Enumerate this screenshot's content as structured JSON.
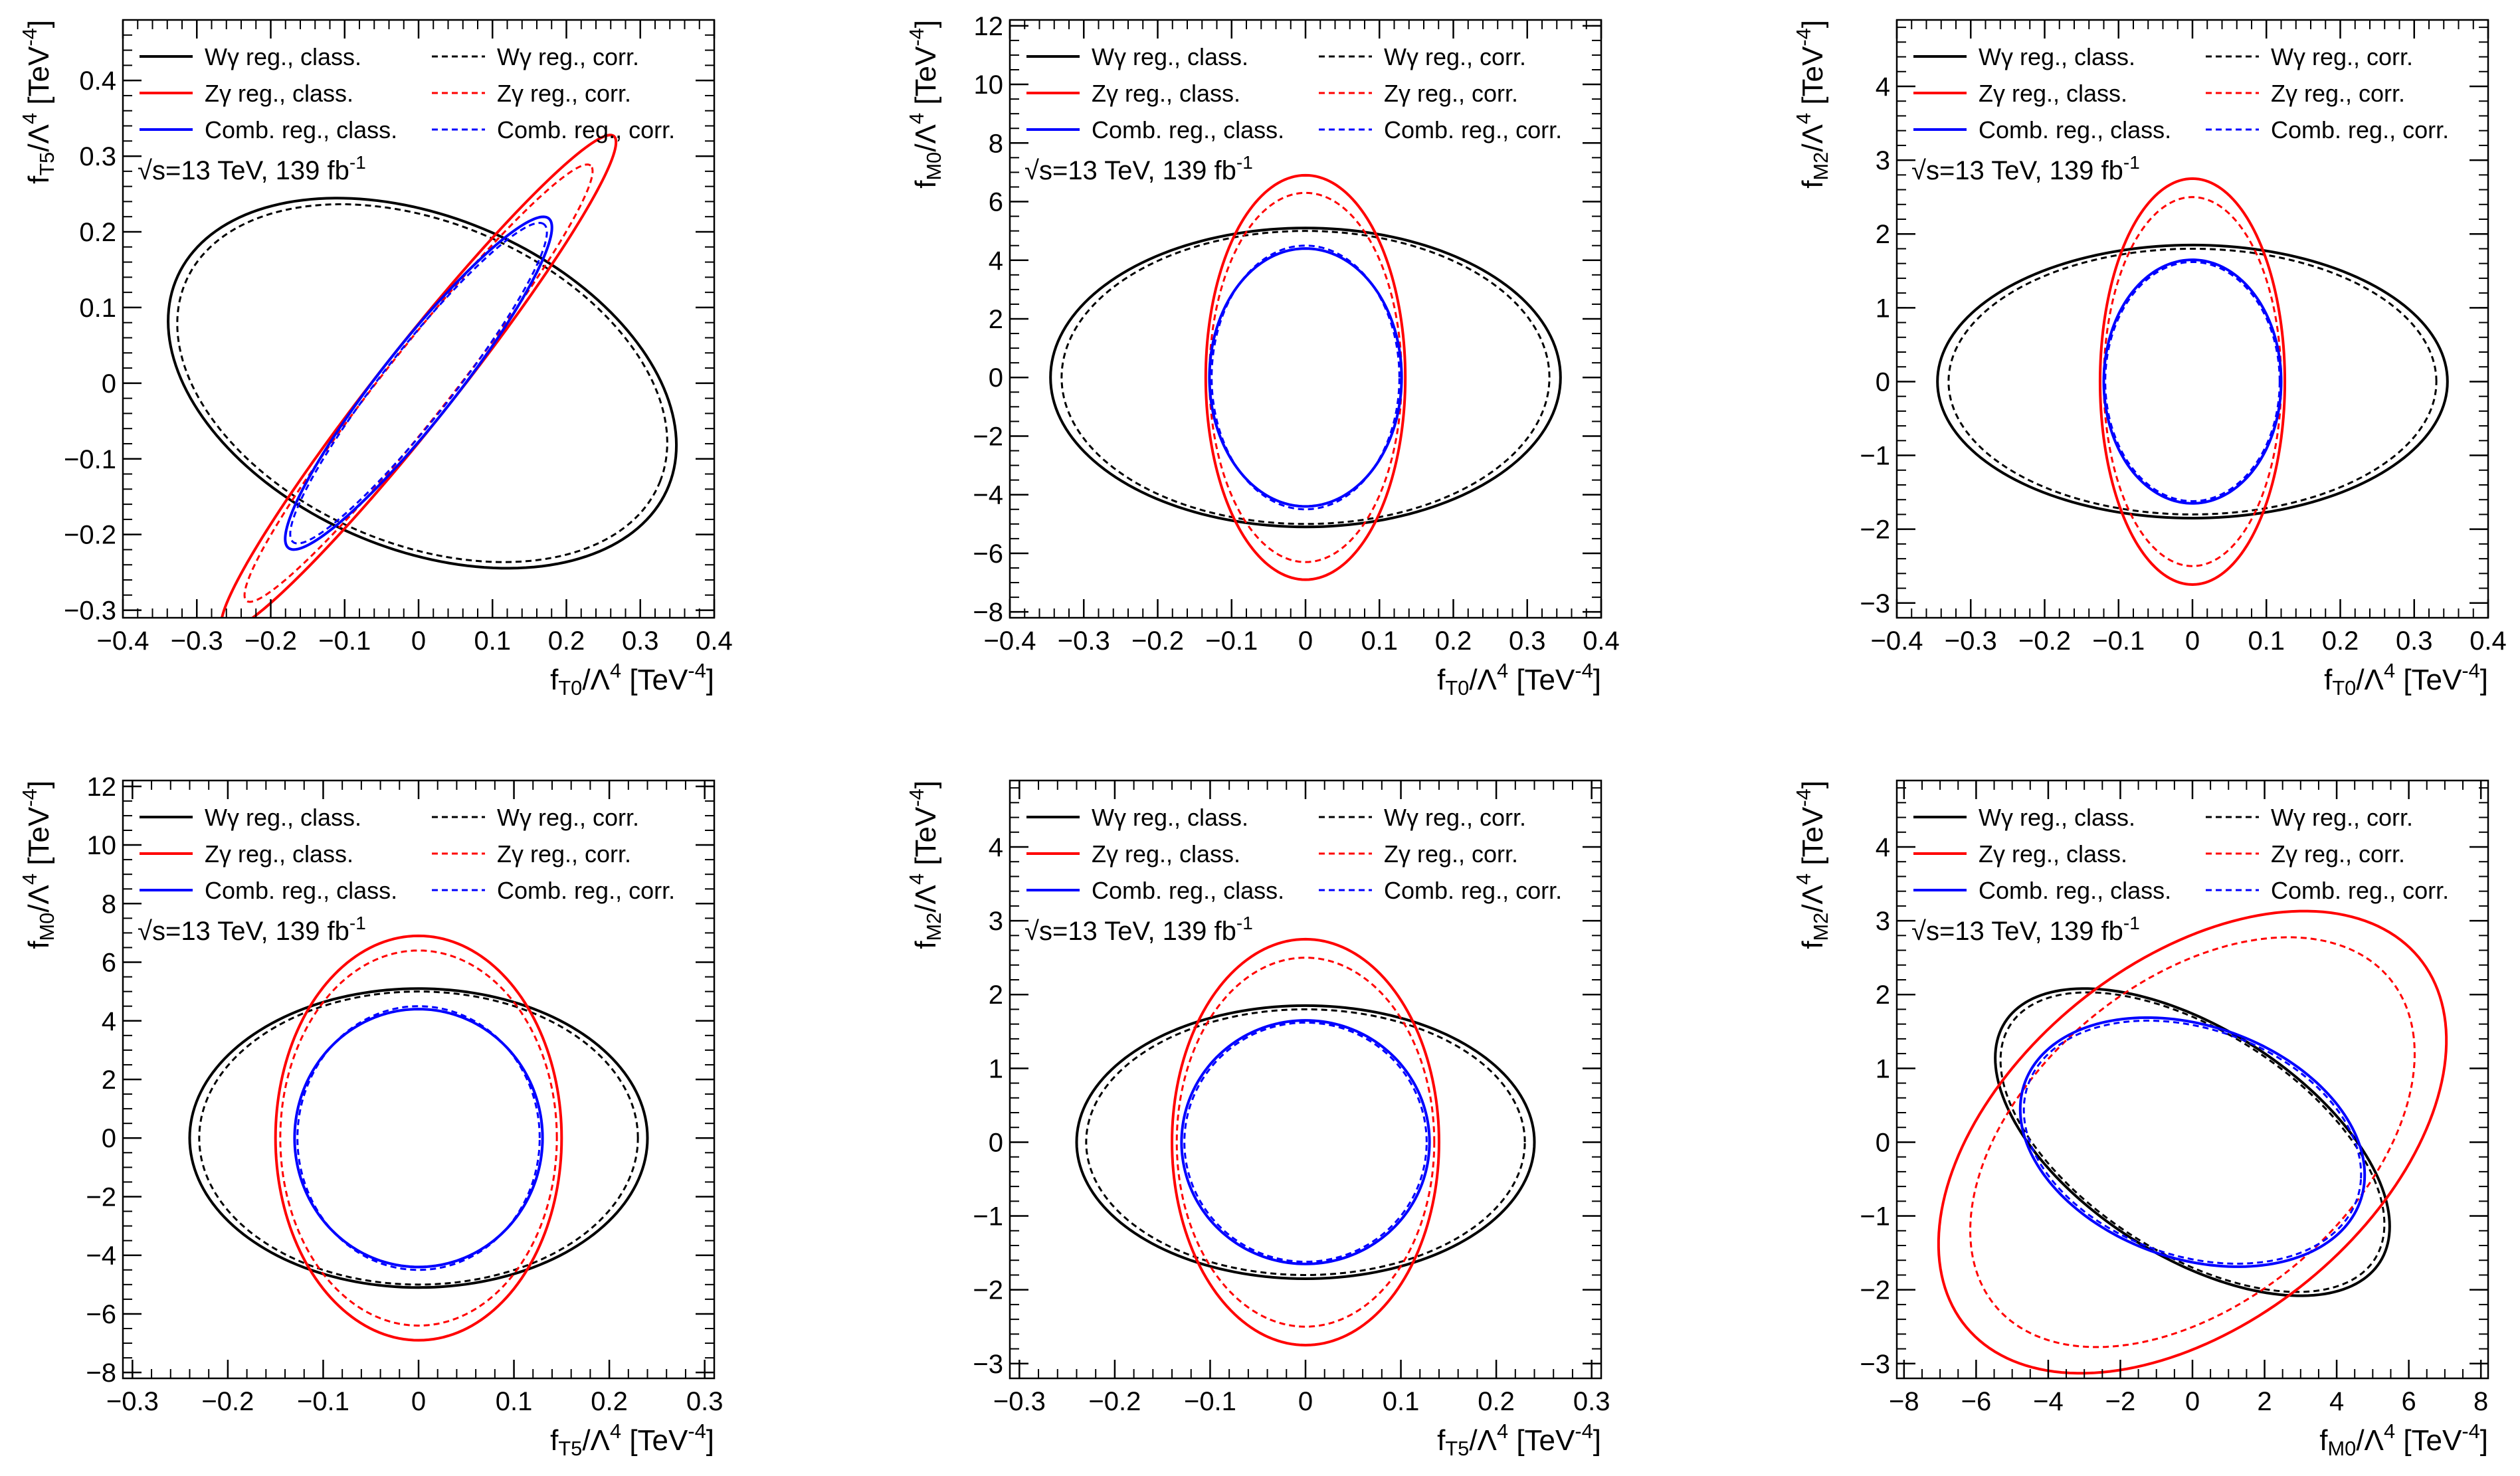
{
  "legend": {
    "entries": [
      {
        "key": "w_class",
        "label": "Wγ reg., class.",
        "color": "#000000",
        "dashed": false
      },
      {
        "key": "w_corr",
        "label": "Wγ reg., corr.",
        "color": "#000000",
        "dashed": true
      },
      {
        "key": "z_class",
        "label": "Zγ reg., class.",
        "color": "#ff0000",
        "dashed": false
      },
      {
        "key": "z_corr",
        "label": "Zγ reg., corr.",
        "color": "#ff0000",
        "dashed": true
      },
      {
        "key": "c_class",
        "label": "Comb. reg., class.",
        "color": "#0000ff",
        "dashed": false
      },
      {
        "key": "c_corr",
        "label": "Comb. reg., corr.",
        "color": "#0000ff",
        "dashed": true
      }
    ]
  },
  "energy_label": {
    "sqrt": "√",
    "main": "s=13 TeV, 139 fb",
    "sup": "-1"
  },
  "colors": {
    "w": "#000000",
    "z": "#ff0000",
    "c": "#0000ff",
    "axis": "#000000"
  },
  "chart_data": [
    {
      "type": "contour",
      "title": "",
      "xlabel": {
        "f": "f",
        "sub": "T0",
        "mid": "/Λ",
        "sup": "4",
        "unit": " [TeV",
        "usup": "-4",
        "end": "]"
      },
      "ylabel": {
        "f": "f",
        "sub": "T5",
        "mid": "/Λ",
        "sup": "4",
        "unit": " [TeV",
        "usup": "-4",
        "end": "]"
      },
      "xlim": [
        -0.4,
        0.4
      ],
      "ylim": [
        -0.31,
        0.48
      ],
      "xticks": [
        -0.4,
        -0.3,
        -0.2,
        -0.1,
        0,
        0.1,
        0.2,
        0.3,
        0.4
      ],
      "xtick_labels": [
        "−0.4",
        "−0.3",
        "−0.2",
        "−0.1",
        "0",
        "0.1",
        "0.2",
        "0.3",
        "0.4"
      ],
      "yticks": [
        -0.3,
        -0.2,
        -0.1,
        0,
        0.1,
        0.2,
        0.3,
        0.4
      ],
      "ytick_labels": [
        "−0.3",
        "−0.2",
        "−0.1",
        "0",
        "0.1",
        "0.2",
        "0.3",
        "0.4"
      ],
      "xminor": 0.02,
      "yminor": 0.02,
      "series": [
        {
          "name": "Wγ reg., class.",
          "style": "w_class",
          "ellipse": {
            "cx": 0.005,
            "cy": 0.0,
            "a": 0.36,
            "b": 0.22,
            "angle_deg": -22
          }
        },
        {
          "name": "Wγ reg., corr.",
          "style": "w_corr",
          "ellipse": {
            "cx": 0.005,
            "cy": 0.0,
            "a": 0.347,
            "b": 0.213,
            "angle_deg": -22
          }
        },
        {
          "name": "Zγ reg., class.",
          "style": "z_class",
          "ellipse": {
            "cx": 0.0,
            "cy": 0.0,
            "a": 0.42,
            "b": 0.05,
            "angle_deg": 51
          }
        },
        {
          "name": "Zγ reg., corr.",
          "style": "z_corr",
          "ellipse": {
            "cx": 0.0,
            "cy": 0.0,
            "a": 0.37,
            "b": 0.045,
            "angle_deg": 51
          }
        },
        {
          "name": "Comb. reg., class.",
          "style": "c_class",
          "ellipse": {
            "cx": 0.0,
            "cy": 0.0,
            "a": 0.28,
            "b": 0.05,
            "angle_deg": 51
          }
        },
        {
          "name": "Comb. reg., corr.",
          "style": "c_corr",
          "ellipse": {
            "cx": 0.0,
            "cy": 0.0,
            "a": 0.27,
            "b": 0.046,
            "angle_deg": 51
          }
        }
      ]
    },
    {
      "type": "contour",
      "title": "",
      "xlabel": {
        "f": "f",
        "sub": "T0",
        "mid": "/Λ",
        "sup": "4",
        "unit": " [TeV",
        "usup": "-4",
        "end": "]"
      },
      "ylabel": {
        "f": "f",
        "sub": "M0",
        "mid": "/Λ",
        "sup": "4",
        "unit": " [TeV",
        "usup": "-4",
        "end": "]"
      },
      "xlim": [
        -0.4,
        0.4
      ],
      "ylim": [
        -8.2,
        12.2
      ],
      "xticks": [
        -0.4,
        -0.3,
        -0.2,
        -0.1,
        0,
        0.1,
        0.2,
        0.3,
        0.4
      ],
      "xtick_labels": [
        "−0.4",
        "−0.3",
        "−0.2",
        "−0.1",
        "0",
        "0.1",
        "0.2",
        "0.3",
        "0.4"
      ],
      "yticks": [
        -8,
        -6,
        -4,
        -2,
        0,
        2,
        4,
        6,
        8,
        10,
        12
      ],
      "ytick_labels": [
        "−8",
        "−6",
        "−4",
        "−2",
        "0",
        "2",
        "4",
        "6",
        "8",
        "10",
        "12"
      ],
      "xminor": 0.02,
      "yminor": 0.5,
      "series": [
        {
          "name": "Wγ reg., class.",
          "style": "w_class",
          "ellipse": {
            "cx": 0.0,
            "cy": 0.0,
            "a": 0.345,
            "b": 5.1,
            "angle_deg": 0
          }
        },
        {
          "name": "Wγ reg., corr.",
          "style": "w_corr",
          "ellipse": {
            "cx": 0.0,
            "cy": 0.0,
            "a": 0.33,
            "b": 5.0,
            "angle_deg": 0
          }
        },
        {
          "name": "Zγ reg., class.",
          "style": "z_class",
          "ellipse": {
            "cx": 0.0,
            "cy": 0.0,
            "a": 0.135,
            "b": 6.9,
            "angle_deg": 0
          }
        },
        {
          "name": "Zγ reg., corr.",
          "style": "z_corr",
          "ellipse": {
            "cx": 0.0,
            "cy": 0.0,
            "a": 0.13,
            "b": 6.3,
            "angle_deg": 0
          }
        },
        {
          "name": "Comb. reg., class.",
          "style": "c_class",
          "ellipse": {
            "cx": 0.0,
            "cy": 0.0,
            "a": 0.13,
            "b": 4.4,
            "angle_deg": 0
          }
        },
        {
          "name": "Comb. reg., corr.",
          "style": "c_corr",
          "ellipse": {
            "cx": 0.0,
            "cy": 0.0,
            "a": 0.127,
            "b": 4.5,
            "angle_deg": 0
          }
        }
      ]
    },
    {
      "type": "contour",
      "title": "",
      "xlabel": {
        "f": "f",
        "sub": "T0",
        "mid": "/Λ",
        "sup": "4",
        "unit": " [TeV",
        "usup": "-4",
        "end": "]"
      },
      "ylabel": {
        "f": "f",
        "sub": "M2",
        "mid": "/Λ",
        "sup": "4",
        "unit": " [TeV",
        "usup": "-4",
        "end": "]"
      },
      "xlim": [
        -0.4,
        0.4
      ],
      "ylim": [
        -3.2,
        4.9
      ],
      "xticks": [
        -0.4,
        -0.3,
        -0.2,
        -0.1,
        0,
        0.1,
        0.2,
        0.3,
        0.4
      ],
      "xtick_labels": [
        "−0.4",
        "−0.3",
        "−0.2",
        "−0.1",
        "0",
        "0.1",
        "0.2",
        "0.3",
        "0.4"
      ],
      "yticks": [
        -3,
        -2,
        -1,
        0,
        1,
        2,
        3,
        4
      ],
      "ytick_labels": [
        "−3",
        "−2",
        "−1",
        "0",
        "1",
        "2",
        "3",
        "4"
      ],
      "xminor": 0.02,
      "yminor": 0.2,
      "series": [
        {
          "name": "Wγ reg., class.",
          "style": "w_class",
          "ellipse": {
            "cx": 0.0,
            "cy": 0.0,
            "a": 0.345,
            "b": 1.85,
            "angle_deg": 0
          }
        },
        {
          "name": "Wγ reg., corr.",
          "style": "w_corr",
          "ellipse": {
            "cx": 0.0,
            "cy": 0.0,
            "a": 0.33,
            "b": 1.8,
            "angle_deg": 0
          }
        },
        {
          "name": "Zγ reg., class.",
          "style": "z_class",
          "ellipse": {
            "cx": 0.0,
            "cy": 0.0,
            "a": 0.125,
            "b": 2.75,
            "angle_deg": 0
          }
        },
        {
          "name": "Zγ reg., corr.",
          "style": "z_corr",
          "ellipse": {
            "cx": 0.0,
            "cy": 0.0,
            "a": 0.12,
            "b": 2.5,
            "angle_deg": 0
          }
        },
        {
          "name": "Comb. reg., class.",
          "style": "c_class",
          "ellipse": {
            "cx": 0.0,
            "cy": 0.0,
            "a": 0.12,
            "b": 1.65,
            "angle_deg": 0
          }
        },
        {
          "name": "Comb. reg., corr.",
          "style": "c_corr",
          "ellipse": {
            "cx": 0.0,
            "cy": 0.0,
            "a": 0.118,
            "b": 1.62,
            "angle_deg": 0
          }
        }
      ]
    },
    {
      "type": "contour",
      "title": "",
      "xlabel": {
        "f": "f",
        "sub": "T5",
        "mid": "/Λ",
        "sup": "4",
        "unit": " [TeV",
        "usup": "-4",
        "end": "]"
      },
      "ylabel": {
        "f": "f",
        "sub": "M0",
        "mid": "/Λ",
        "sup": "4",
        "unit": " [TeV",
        "usup": "-4",
        "end": "]"
      },
      "xlim": [
        -0.31,
        0.31
      ],
      "ylim": [
        -8.2,
        12.2
      ],
      "xticks": [
        -0.3,
        -0.2,
        -0.1,
        0,
        0.1,
        0.2,
        0.3
      ],
      "xtick_labels": [
        "−0.3",
        "−0.2",
        "−0.1",
        "0",
        "0.1",
        "0.2",
        "0.3"
      ],
      "yticks": [
        -8,
        -6,
        -4,
        -2,
        0,
        2,
        4,
        6,
        8,
        10,
        12
      ],
      "ytick_labels": [
        "−8",
        "−6",
        "−4",
        "−2",
        "0",
        "2",
        "4",
        "6",
        "8",
        "10",
        "12"
      ],
      "xminor": 0.02,
      "yminor": 0.5,
      "series": [
        {
          "name": "Wγ reg., class.",
          "style": "w_class",
          "ellipse": {
            "cx": 0.0,
            "cy": 0.0,
            "a": 0.24,
            "b": 5.1,
            "angle_deg": 0
          }
        },
        {
          "name": "Wγ reg., corr.",
          "style": "w_corr",
          "ellipse": {
            "cx": 0.0,
            "cy": 0.0,
            "a": 0.23,
            "b": 5.0,
            "angle_deg": 0
          }
        },
        {
          "name": "Zγ reg., class.",
          "style": "z_class",
          "ellipse": {
            "cx": 0.0,
            "cy": 0.0,
            "a": 0.15,
            "b": 6.9,
            "angle_deg": 0
          }
        },
        {
          "name": "Zγ reg., corr.",
          "style": "z_corr",
          "ellipse": {
            "cx": 0.0,
            "cy": 0.0,
            "a": 0.145,
            "b": 6.4,
            "angle_deg": 0
          }
        },
        {
          "name": "Comb. reg., class.",
          "style": "c_class",
          "ellipse": {
            "cx": 0.0,
            "cy": 0.0,
            "a": 0.13,
            "b": 4.4,
            "angle_deg": 0
          }
        },
        {
          "name": "Comb. reg., corr.",
          "style": "c_corr",
          "ellipse": {
            "cx": 0.0,
            "cy": 0.0,
            "a": 0.127,
            "b": 4.5,
            "angle_deg": 0
          }
        }
      ]
    },
    {
      "type": "contour",
      "title": "",
      "xlabel": {
        "f": "f",
        "sub": "T5",
        "mid": "/Λ",
        "sup": "4",
        "unit": " [TeV",
        "usup": "-4",
        "end": "]"
      },
      "ylabel": {
        "f": "f",
        "sub": "M2",
        "mid": "/Λ",
        "sup": "4",
        "unit": " [TeV",
        "usup": "-4",
        "end": "]"
      },
      "xlim": [
        -0.31,
        0.31
      ],
      "ylim": [
        -3.2,
        4.9
      ],
      "xticks": [
        -0.3,
        -0.2,
        -0.1,
        0,
        0.1,
        0.2,
        0.3
      ],
      "xtick_labels": [
        "−0.3",
        "−0.2",
        "−0.1",
        "0",
        "0.1",
        "0.2",
        "0.3"
      ],
      "yticks": [
        -3,
        -2,
        -1,
        0,
        1,
        2,
        3,
        4
      ],
      "ytick_labels": [
        "−3",
        "−2",
        "−1",
        "0",
        "1",
        "2",
        "3",
        "4"
      ],
      "xminor": 0.02,
      "yminor": 0.2,
      "series": [
        {
          "name": "Wγ reg., class.",
          "style": "w_class",
          "ellipse": {
            "cx": 0.0,
            "cy": 0.0,
            "a": 0.24,
            "b": 1.85,
            "angle_deg": 0
          }
        },
        {
          "name": "Wγ reg., corr.",
          "style": "w_corr",
          "ellipse": {
            "cx": 0.0,
            "cy": 0.0,
            "a": 0.23,
            "b": 1.8,
            "angle_deg": 0
          }
        },
        {
          "name": "Zγ reg., class.",
          "style": "z_class",
          "ellipse": {
            "cx": 0.0,
            "cy": 0.0,
            "a": 0.14,
            "b": 2.75,
            "angle_deg": 0
          }
        },
        {
          "name": "Zγ reg., corr.",
          "style": "z_corr",
          "ellipse": {
            "cx": 0.0,
            "cy": 0.0,
            "a": 0.135,
            "b": 2.5,
            "angle_deg": 0
          }
        },
        {
          "name": "Comb. reg., class.",
          "style": "c_class",
          "ellipse": {
            "cx": 0.0,
            "cy": 0.0,
            "a": 0.13,
            "b": 1.65,
            "angle_deg": 0
          }
        },
        {
          "name": "Comb. reg., corr.",
          "style": "c_corr",
          "ellipse": {
            "cx": 0.0,
            "cy": 0.0,
            "a": 0.127,
            "b": 1.62,
            "angle_deg": 0
          }
        }
      ]
    },
    {
      "type": "contour",
      "title": "",
      "xlabel": {
        "f": "f",
        "sub": "M0",
        "mid": "/Λ",
        "sup": "4",
        "unit": " [TeV",
        "usup": "-4",
        "end": "]"
      },
      "ylabel": {
        "f": "f",
        "sub": "M2",
        "mid": "/Λ",
        "sup": "4",
        "unit": " [TeV",
        "usup": "-4",
        "end": "]"
      },
      "xlim": [
        -8.2,
        8.2
      ],
      "ylim": [
        -3.2,
        4.9
      ],
      "xticks": [
        -8,
        -6,
        -4,
        -2,
        0,
        2,
        4,
        6,
        8
      ],
      "xtick_labels": [
        "−8",
        "−6",
        "−4",
        "−2",
        "0",
        "2",
        "4",
        "6",
        "8"
      ],
      "yticks": [
        -3,
        -2,
        -1,
        0,
        1,
        2,
        3,
        4
      ],
      "ytick_labels": [
        "−3",
        "−2",
        "−1",
        "0",
        "1",
        "2",
        "3",
        "4"
      ],
      "xminor": 0.5,
      "yminor": 0.2,
      "series": [
        {
          "name": "Wγ reg., class.",
          "style": "w_class",
          "ellipse": {
            "cx": 0.0,
            "cy": 0.0,
            "a": 5.6,
            "b": 1.7,
            "angle_deg": -13
          }
        },
        {
          "name": "Wγ reg., corr.",
          "style": "w_corr",
          "ellipse": {
            "cx": 0.0,
            "cy": 0.0,
            "a": 5.45,
            "b": 1.66,
            "angle_deg": -13
          }
        },
        {
          "name": "Zγ reg., class.",
          "style": "z_class",
          "ellipse": {
            "cx": 0.0,
            "cy": 0.0,
            "a": 7.2,
            "b": 2.75,
            "angle_deg": 13
          }
        },
        {
          "name": "Zγ reg., corr.",
          "style": "z_corr",
          "ellipse": {
            "cx": 0.0,
            "cy": 0.0,
            "a": 6.3,
            "b": 2.45,
            "angle_deg": 13
          }
        },
        {
          "name": "Comb. reg., class.",
          "style": "c_class",
          "ellipse": {
            "cx": 0.0,
            "cy": 0.0,
            "a": 4.8,
            "b": 1.62,
            "angle_deg": -6
          }
        },
        {
          "name": "Comb. reg., corr.",
          "style": "c_corr",
          "ellipse": {
            "cx": 0.0,
            "cy": 0.0,
            "a": 4.7,
            "b": 1.58,
            "angle_deg": -6
          }
        }
      ]
    }
  ]
}
